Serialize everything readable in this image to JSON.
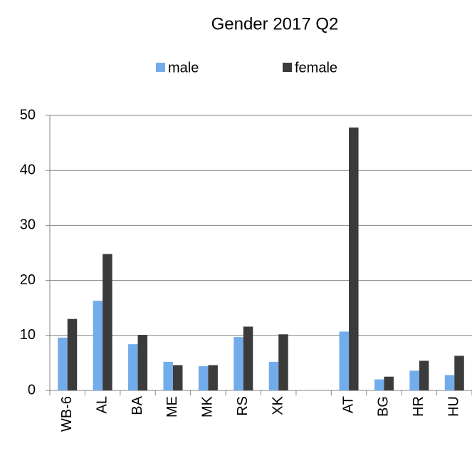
{
  "chart_data": {
    "type": "bar",
    "title": "Gender 2017 Q2",
    "categories": [
      "WB-6",
      "AL",
      "BA",
      "ME",
      "MK",
      "RS",
      "XK",
      null,
      "AT",
      "BG",
      "HR",
      "HU"
    ],
    "series": [
      {
        "name": "male",
        "color": "#72aceb",
        "values": [
          9.6,
          16.3,
          8.4,
          5.2,
          4.4,
          9.7,
          5.2,
          null,
          10.7,
          2.0,
          3.6,
          2.8
        ]
      },
      {
        "name": "female",
        "color": "#3b3b3b",
        "values": [
          13.0,
          24.8,
          10.1,
          4.6,
          4.6,
          11.6,
          10.2,
          null,
          47.8,
          2.5,
          5.4,
          6.3
        ]
      }
    ],
    "ylim": [
      0,
      50
    ],
    "yticks": [
      0,
      10,
      20,
      30,
      40,
      50
    ],
    "grid": true,
    "legend": "top"
  }
}
